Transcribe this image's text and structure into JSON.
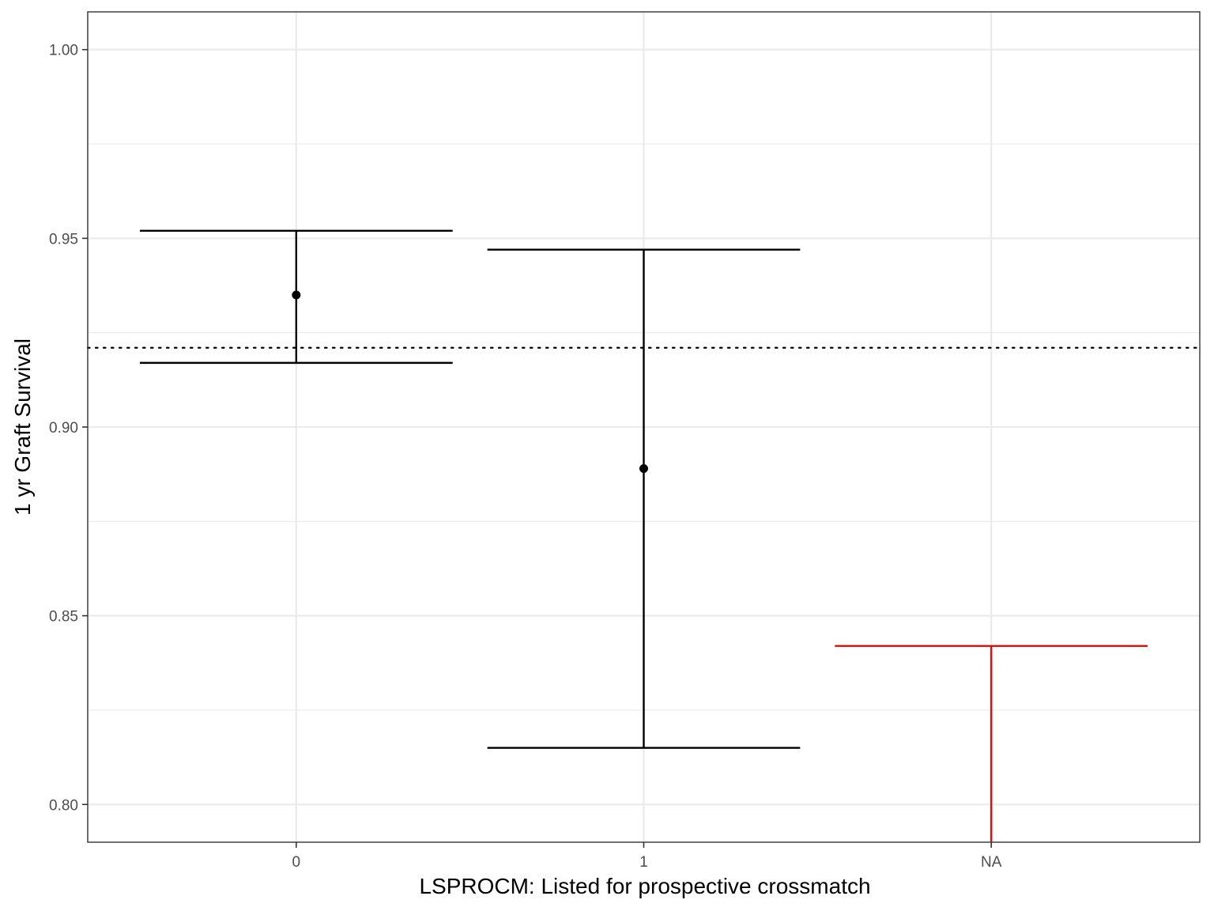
{
  "chart_data": {
    "type": "errorbar",
    "xlabel": "LSPROCM: Listed for prospective crossmatch",
    "ylabel": "1 yr Graft Survival",
    "categories": [
      "0",
      "1",
      "NA"
    ],
    "ylim": [
      0.79,
      1.01
    ],
    "yticks": [
      0.8,
      0.85,
      0.9,
      0.95,
      1.0
    ],
    "ytick_labels": [
      "0.80",
      "0.85",
      "0.90",
      "0.95",
      "1.00"
    ],
    "grid": true,
    "reference_line": {
      "y": 0.921,
      "style": "dotted",
      "color": "#000000"
    },
    "points": [
      {
        "category": "0",
        "estimate": 0.935,
        "lower": 0.917,
        "upper": 0.952,
        "color": "#000000"
      },
      {
        "category": "1",
        "estimate": 0.889,
        "lower": 0.815,
        "upper": 0.947,
        "color": "#000000"
      },
      {
        "category": "NA",
        "estimate": null,
        "lower": 0.79,
        "upper": 0.842,
        "color": "#ff0000"
      }
    ]
  }
}
